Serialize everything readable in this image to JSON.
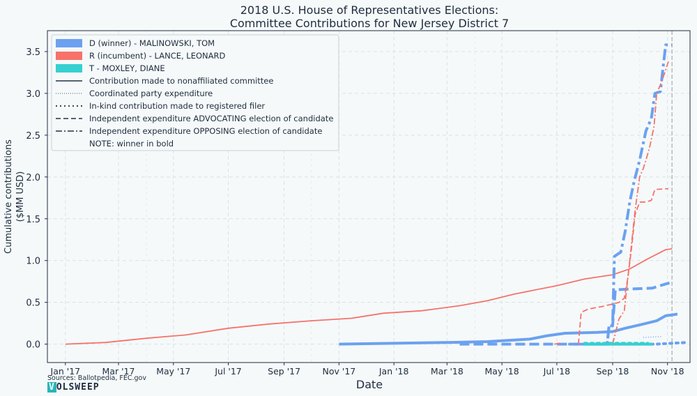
{
  "chart_data": {
    "type": "line",
    "title_line1": "2018 U.S. House of Representatives Elections:",
    "title_line2": "Committee Contributions for New Jersey District 7",
    "xlabel": "Date",
    "ylabel_line1": "Cumulative contributions",
    "ylabel_line2": "($MM USD)",
    "x_ticks": [
      "Jan '17",
      "Mar '17",
      "May '17",
      "Jul '17",
      "Sep '17",
      "Nov '17",
      "Jan '18",
      "Mar '18",
      "May '18",
      "Jul '18",
      "Sep '18",
      "Nov '18"
    ],
    "y_ticks": [
      "0.0",
      "0.5",
      "1.0",
      "1.5",
      "2.0",
      "2.5",
      "3.0",
      "3.5"
    ],
    "xlim": [
      "2016-12-12",
      "2018-11-26"
    ],
    "ylim": [
      -0.22,
      3.75
    ],
    "election_date": "2018-11-06",
    "grid": true,
    "legend_position": "top-left",
    "colors": {
      "D": "#6ba1f0",
      "R": "#f6726a",
      "T": "#35d0d0",
      "election_line": "#b9b9b9",
      "text": "#1f2d3d"
    },
    "legend": [
      {
        "label": "D (winner) - MALINOWSKI, TOM",
        "kind": "patch",
        "color": "#6ba1f0"
      },
      {
        "label": "R (incumbent) - LANCE, LEONARD",
        "kind": "patch",
        "color": "#f6726a"
      },
      {
        "label": "T - MOXLEY, DIANE",
        "kind": "patch",
        "color": "#35d0d0"
      },
      {
        "label": "Contribution made to nonaffiliated committee",
        "kind": "line",
        "dash": "solid"
      },
      {
        "label": "Coordinated party expenditure",
        "kind": "line",
        "dash": "dotted-fine"
      },
      {
        "label": "In-kind contribution made to registered filer",
        "kind": "line",
        "dash": "dotted"
      },
      {
        "label": "Independent expenditure ADVOCATING election of candidate",
        "kind": "line",
        "dash": "dashed"
      },
      {
        "label": "Independent expenditure OPPOSING election of candidate",
        "kind": "line",
        "dash": "dashdot"
      },
      {
        "label": "NOTE: winner in bold",
        "kind": "none"
      }
    ],
    "series": [
      {
        "name": "R (incumbent) - LANCE, LEONARD",
        "party": "R",
        "style": "solid",
        "bold": false,
        "points": [
          [
            "2017-01-01",
            0.0
          ],
          [
            "2017-02-15",
            0.02
          ],
          [
            "2017-04-01",
            0.07
          ],
          [
            "2017-05-15",
            0.11
          ],
          [
            "2017-07-01",
            0.19
          ],
          [
            "2017-08-15",
            0.24
          ],
          [
            "2017-10-01",
            0.28
          ],
          [
            "2017-11-15",
            0.31
          ],
          [
            "2017-12-20",
            0.37
          ],
          [
            "2018-02-01",
            0.4
          ],
          [
            "2018-03-15",
            0.46
          ],
          [
            "2018-04-15",
            0.52
          ],
          [
            "2018-05-15",
            0.6
          ],
          [
            "2018-07-01",
            0.7
          ],
          [
            "2018-08-01",
            0.78
          ],
          [
            "2018-09-01",
            0.83
          ],
          [
            "2018-09-20",
            0.9
          ],
          [
            "2018-10-10",
            1.02
          ],
          [
            "2018-10-30",
            1.13
          ],
          [
            "2018-11-06",
            1.14
          ]
        ]
      },
      {
        "name": "D (winner) - MALINOWSKI, TOM",
        "party": "D",
        "style": "solid",
        "bold": true,
        "points": [
          [
            "2017-11-01",
            0.0
          ],
          [
            "2018-01-01",
            0.01
          ],
          [
            "2018-03-01",
            0.02
          ],
          [
            "2018-04-15",
            0.03
          ],
          [
            "2018-06-01",
            0.06
          ],
          [
            "2018-06-20",
            0.1
          ],
          [
            "2018-07-10",
            0.13
          ],
          [
            "2018-08-15",
            0.14
          ],
          [
            "2018-09-01",
            0.15
          ],
          [
            "2018-09-15",
            0.19
          ],
          [
            "2018-10-05",
            0.24
          ],
          [
            "2018-10-20",
            0.28
          ],
          [
            "2018-10-30",
            0.34
          ],
          [
            "2018-11-06",
            0.35
          ],
          [
            "2018-11-12",
            0.36
          ]
        ]
      },
      {
        "name": "D independent expenditure ADVOCATING",
        "party": "D",
        "style": "dashed",
        "bold": true,
        "points": [
          [
            "2018-03-15",
            0.0
          ],
          [
            "2018-06-15",
            0.0
          ],
          [
            "2018-08-01",
            0.0
          ],
          [
            "2018-08-26",
            0.0
          ],
          [
            "2018-08-28",
            0.22
          ],
          [
            "2018-09-01",
            0.22
          ],
          [
            "2018-09-04",
            0.65
          ],
          [
            "2018-09-20",
            0.66
          ],
          [
            "2018-10-15",
            0.67
          ],
          [
            "2018-10-30",
            0.72
          ],
          [
            "2018-11-06",
            0.74
          ]
        ]
      },
      {
        "name": "D independent expenditure OPPOSING",
        "party": "D",
        "style": "dashdot",
        "bold": true,
        "points": [
          [
            "2018-08-10",
            0.0
          ],
          [
            "2018-08-26",
            0.0
          ],
          [
            "2018-08-28",
            0.22
          ],
          [
            "2018-09-01",
            0.22
          ],
          [
            "2018-09-03",
            1.05
          ],
          [
            "2018-09-10",
            1.1
          ],
          [
            "2018-09-15",
            1.35
          ],
          [
            "2018-09-20",
            1.7
          ],
          [
            "2018-09-25",
            1.95
          ],
          [
            "2018-10-01",
            2.2
          ],
          [
            "2018-10-08",
            2.55
          ],
          [
            "2018-10-14",
            2.7
          ],
          [
            "2018-10-18",
            3.0
          ],
          [
            "2018-10-24",
            3.02
          ],
          [
            "2018-10-28",
            3.4
          ],
          [
            "2018-10-30",
            3.58
          ],
          [
            "2018-11-06",
            3.58
          ]
        ]
      },
      {
        "name": "D in-kind contribution",
        "party": "D",
        "style": "dotted",
        "bold": true,
        "points": [
          [
            "2018-07-15",
            0.0
          ],
          [
            "2018-09-01",
            0.0
          ],
          [
            "2018-10-20",
            0.0
          ],
          [
            "2018-11-22",
            0.02
          ]
        ]
      },
      {
        "name": "D coordinated party expenditure",
        "party": "D",
        "style": "dotted-fine",
        "bold": false,
        "points": [
          [
            "2018-10-05",
            0.08
          ],
          [
            "2018-10-25",
            0.09
          ]
        ]
      },
      {
        "name": "R independent expenditure ADVOCATING",
        "party": "R",
        "style": "dashed",
        "bold": false,
        "points": [
          [
            "2018-07-25",
            0.0
          ],
          [
            "2018-07-28",
            0.38
          ],
          [
            "2018-08-05",
            0.42
          ],
          [
            "2018-08-20",
            0.45
          ],
          [
            "2018-09-01",
            0.48
          ],
          [
            "2018-09-08",
            0.5
          ],
          [
            "2018-09-14",
            0.55
          ],
          [
            "2018-09-18",
            0.8
          ],
          [
            "2018-09-22",
            1.15
          ],
          [
            "2018-09-26",
            1.55
          ],
          [
            "2018-10-01",
            1.7
          ],
          [
            "2018-10-08",
            1.7
          ],
          [
            "2018-10-14",
            1.72
          ],
          [
            "2018-10-18",
            1.85
          ],
          [
            "2018-11-02",
            1.86
          ]
        ]
      },
      {
        "name": "R independent expenditure OPPOSING",
        "party": "R",
        "style": "dashdot",
        "bold": false,
        "points": [
          [
            "2018-09-01",
            0.0
          ],
          [
            "2018-09-08",
            0.3
          ],
          [
            "2018-09-14",
            0.4
          ],
          [
            "2018-09-18",
            0.8
          ],
          [
            "2018-09-22",
            1.2
          ],
          [
            "2018-09-26",
            1.6
          ],
          [
            "2018-10-01",
            2.0
          ],
          [
            "2018-10-05",
            2.1
          ],
          [
            "2018-10-08",
            2.2
          ],
          [
            "2018-10-12",
            2.35
          ],
          [
            "2018-10-17",
            2.6
          ],
          [
            "2018-10-20",
            3.0
          ],
          [
            "2018-10-24",
            3.1
          ],
          [
            "2018-10-28",
            3.22
          ],
          [
            "2018-11-02",
            3.38
          ]
        ]
      },
      {
        "name": "R in-kind contribution",
        "party": "R",
        "style": "solid",
        "bold": false,
        "points": [
          [
            "2018-06-28",
            0.0
          ],
          [
            "2018-07-05",
            0.01
          ]
        ]
      },
      {
        "name": "T - MOXLEY, DIANE",
        "party": "T",
        "style": "solid",
        "bold": true,
        "points": [
          [
            "2018-08-01",
            0.0
          ],
          [
            "2018-10-15",
            0.0
          ]
        ]
      },
      {
        "name": "T in-kind contribution",
        "party": "T",
        "style": "dotted",
        "bold": true,
        "points": [
          [
            "2018-08-01",
            0.01
          ],
          [
            "2018-10-10",
            0.01
          ]
        ]
      }
    ],
    "credits": {
      "sources": "Sources: Ballotpedia, FEC.gov",
      "brand": "OLSWEEP",
      "brand_first": "V"
    }
  }
}
